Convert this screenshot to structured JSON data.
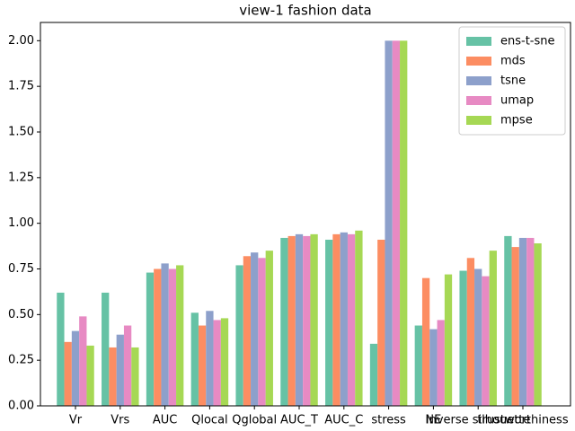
{
  "chart_data": {
    "type": "bar",
    "title": "view-1 fashion data",
    "categories": [
      "Vr",
      "Vrs",
      "AUC",
      "Qlocal",
      "Qglobal",
      "AUC_T",
      "AUC_C",
      "stress",
      "NE",
      "inverse silhouette",
      "trustworthiness"
    ],
    "series": [
      {
        "name": "ens-t-sne",
        "color": "#66c2a5",
        "values": [
          0.62,
          0.62,
          0.73,
          0.51,
          0.77,
          0.92,
          0.91,
          0.34,
          0.44,
          0.74,
          0.93
        ]
      },
      {
        "name": "mds",
        "color": "#fc8d62",
        "values": [
          0.35,
          0.32,
          0.75,
          0.44,
          0.82,
          0.93,
          0.94,
          0.91,
          0.7,
          0.81,
          0.87
        ]
      },
      {
        "name": "tsne",
        "color": "#8da0cb",
        "values": [
          0.41,
          0.39,
          0.78,
          0.52,
          0.84,
          0.94,
          0.95,
          2.0,
          0.42,
          0.75,
          0.92
        ]
      },
      {
        "name": "umap",
        "color": "#e78ac3",
        "values": [
          0.49,
          0.44,
          0.75,
          0.47,
          0.81,
          0.93,
          0.94,
          2.0,
          0.47,
          0.71,
          0.92
        ]
      },
      {
        "name": "mpse",
        "color": "#a6d854",
        "values": [
          0.33,
          0.32,
          0.77,
          0.48,
          0.85,
          0.94,
          0.96,
          2.0,
          0.72,
          0.85,
          0.89
        ]
      }
    ],
    "ylim": [
      0,
      2.1
    ],
    "yticks": [
      {
        "value": 0,
        "label": "0.00"
      },
      {
        "value": 0.25,
        "label": "0.25"
      },
      {
        "value": 0.5,
        "label": "0.50"
      },
      {
        "value": 0.75,
        "label": "0.75"
      },
      {
        "value": 1,
        "label": "1.00"
      },
      {
        "value": 1.25,
        "label": "1.25"
      },
      {
        "value": 1.5,
        "label": "1.50"
      },
      {
        "value": 1.75,
        "label": "1.75"
      },
      {
        "value": 2,
        "label": "2.00"
      }
    ],
    "legend": "upper right"
  }
}
